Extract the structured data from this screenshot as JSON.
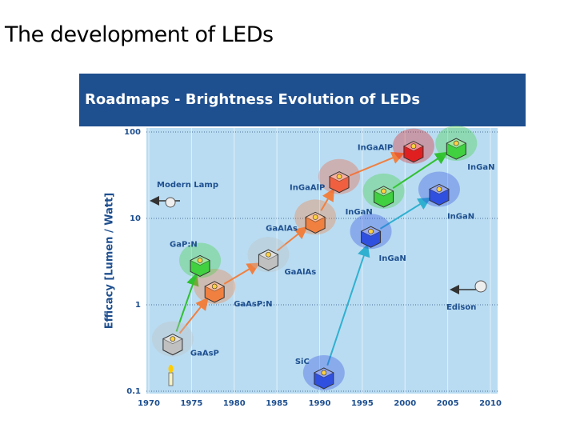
{
  "title": "The development of LEDs",
  "chart_data": {
    "type": "scatter",
    "title": "Roadmaps - Brightness Evolution of LEDs",
    "y_label": "Efficacy [Lumen / Watt]",
    "xlim": [
      1970,
      2010
    ],
    "ylim": [
      0.1,
      100
    ],
    "log_y": true,
    "grid": true,
    "xticks": [
      1970,
      1975,
      1980,
      1985,
      1990,
      1995,
      2000,
      2005,
      2010
    ],
    "yticks": [
      0.1,
      1,
      10,
      100
    ],
    "points": [
      {
        "label": "GaAsP",
        "x": 1972.8,
        "y": 0.37,
        "color": "#c0c0c0"
      },
      {
        "label": "GaAsP:N",
        "x": 1977.7,
        "y": 1.5,
        "color": "#f08040"
      },
      {
        "label": "GaP:N",
        "x": 1976,
        "y": 3,
        "color": "#40d040"
      },
      {
        "label": "GaAlAs",
        "x": 1984,
        "y": 3.5,
        "color": "#c0c0c0"
      },
      {
        "label": "GaAlAs",
        "x": 1989.5,
        "y": 9.5,
        "color": "#f08040"
      },
      {
        "label": "InGaAlP",
        "x": 1992.3,
        "y": 28,
        "color": "#f06040"
      },
      {
        "label": "InGaAlP",
        "x": 2001,
        "y": 63,
        "color": "#e02020"
      },
      {
        "label": "InGaN",
        "x": 1997.5,
        "y": 19,
        "color": "#40d040"
      },
      {
        "label": "InGaN",
        "x": 1996,
        "y": 6.5,
        "color": "#3050e0"
      },
      {
        "label": "SiC",
        "x": 1990.5,
        "y": 0.15,
        "color": "#3050e0"
      },
      {
        "label": "InGaN",
        "x": 2006,
        "y": 68,
        "color": "#40d040"
      },
      {
        "label": "InGaN",
        "x": 2004,
        "y": 20,
        "color": "#3050e0"
      }
    ],
    "references": [
      {
        "label": "Modern Lamp",
        "y": 16
      },
      {
        "label": "Edison",
        "y": 1.5
      }
    ]
  }
}
